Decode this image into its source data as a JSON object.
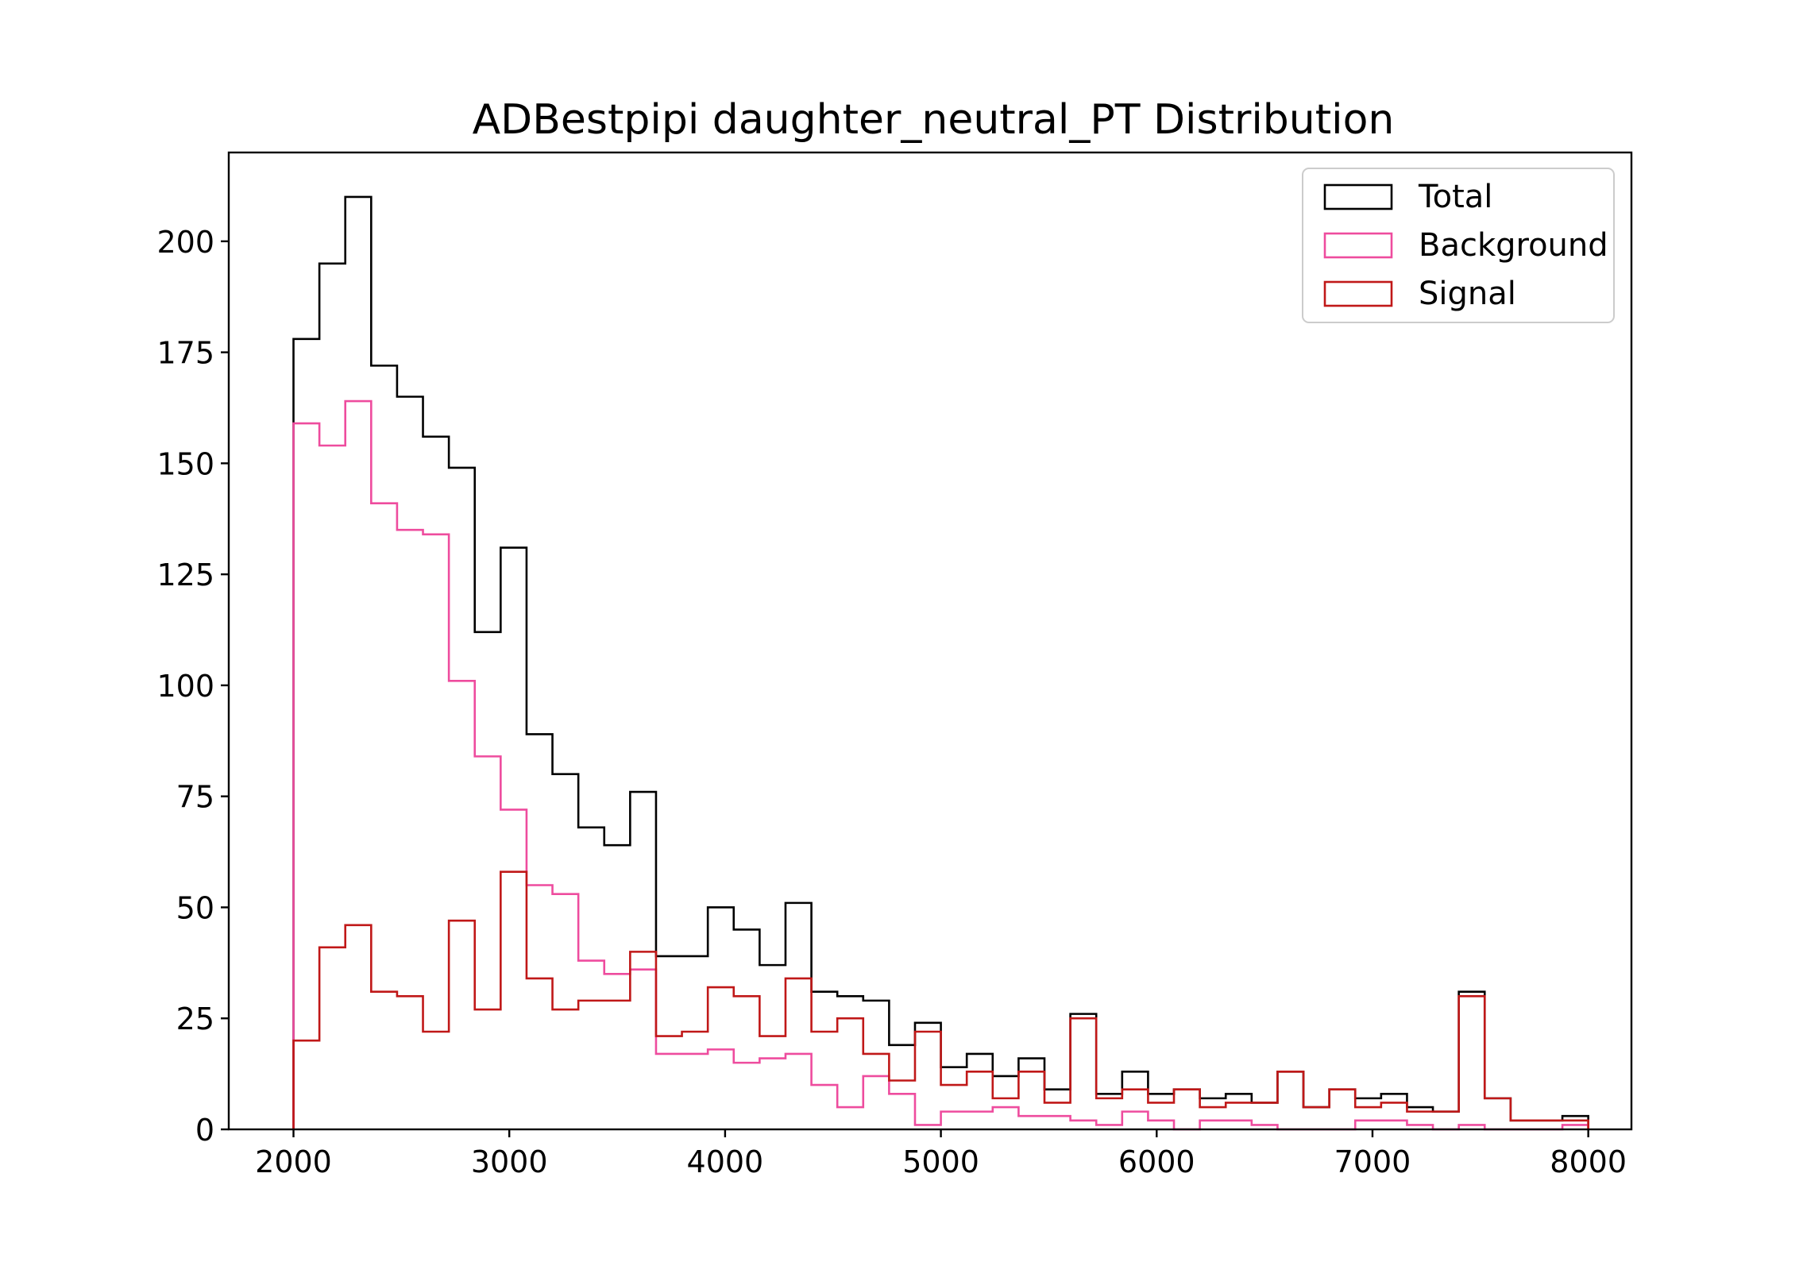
{
  "chart_data": {
    "type": "histogram",
    "title": "ADBestpipi daughter_neutral_PT Distribution",
    "xlabel": "",
    "ylabel": "",
    "xlim": [
      1700,
      8200
    ],
    "ylim": [
      0,
      220
    ],
    "x_ticks": [
      2000,
      3000,
      4000,
      5000,
      6000,
      7000,
      8000
    ],
    "y_ticks": [
      0,
      25,
      50,
      75,
      100,
      125,
      150,
      175,
      200
    ],
    "grid": false,
    "legend_position": "top-right",
    "bin_edges": [
      2000,
      2120,
      2240,
      2360,
      2480,
      2600,
      2720,
      2840,
      2960,
      3080,
      3200,
      3320,
      3440,
      3560,
      3680,
      3800,
      3920,
      4040,
      4160,
      4280,
      4400,
      4520,
      4640,
      4760,
      4880,
      5000,
      5120,
      5240,
      5360,
      5480,
      5600,
      5720,
      5840,
      5960,
      6080,
      6200,
      6320,
      6440,
      6560,
      6680,
      6800,
      6920,
      7040,
      7160,
      7280,
      7400,
      7520,
      7640,
      7760,
      7880
    ],
    "series": [
      {
        "name": "Total",
        "color": "#000000",
        "values": [
          178,
          195,
          210,
          172,
          165,
          156,
          149,
          112,
          131,
          89,
          80,
          68,
          64,
          76,
          39,
          39,
          50,
          45,
          37,
          51,
          31,
          30,
          29,
          19,
          24,
          14,
          17,
          12,
          16,
          9,
          26,
          8,
          13,
          8,
          9,
          7,
          8,
          6,
          13,
          5,
          9,
          7,
          8,
          5,
          4,
          31,
          7,
          2,
          2,
          3
        ]
      },
      {
        "name": "Background",
        "color": "#ee4c9e",
        "values": [
          159,
          154,
          164,
          141,
          135,
          134,
          101,
          84,
          72,
          55,
          53,
          38,
          35,
          36,
          17,
          17,
          18,
          15,
          16,
          17,
          10,
          5,
          12,
          8,
          1,
          4,
          4,
          5,
          3,
          3,
          2,
          1,
          4,
          2,
          0,
          2,
          2,
          1,
          0,
          0,
          0,
          2,
          2,
          1,
          0,
          1,
          0,
          0,
          0,
          1
        ]
      },
      {
        "name": "Signal",
        "color": "#c01818",
        "values": [
          20,
          41,
          46,
          31,
          30,
          22,
          47,
          27,
          58,
          34,
          27,
          29,
          29,
          40,
          21,
          22,
          32,
          30,
          21,
          34,
          22,
          25,
          17,
          11,
          22,
          10,
          13,
          7,
          13,
          6,
          25,
          7,
          9,
          6,
          9,
          5,
          6,
          6,
          13,
          5,
          9,
          5,
          6,
          4,
          4,
          30,
          7,
          2,
          2,
          2
        ]
      }
    ]
  }
}
